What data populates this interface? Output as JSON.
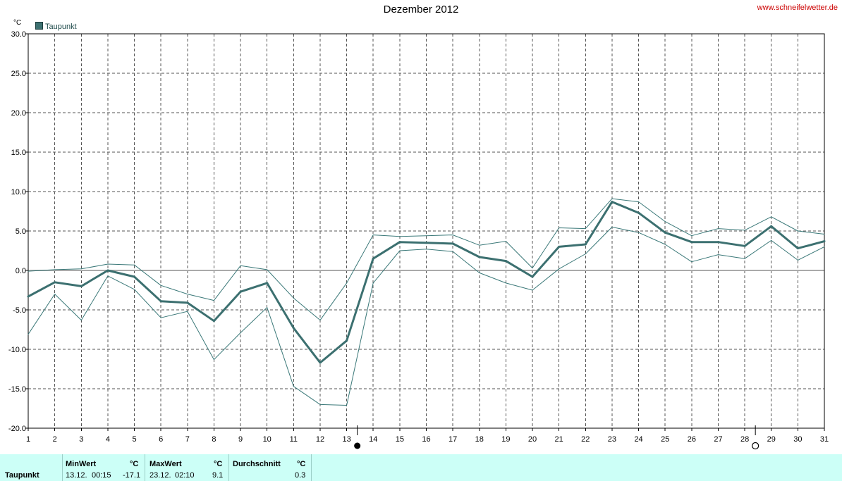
{
  "title": "Dezember 2012",
  "site": "www.schneifelwetter.de",
  "unit": "°C",
  "legend": {
    "label": "Taupunkt"
  },
  "colors": {
    "main": "#3c7070",
    "band": "#3a7878",
    "grid": "#555555",
    "zero": "#aaaaaa",
    "stats_bg": "#ccfff7"
  },
  "moon": {
    "new_moon_label_pos": "13-14",
    "full_moon_label_pos": "28-29"
  },
  "chart_data": {
    "type": "line",
    "title": "Dezember 2012",
    "ylabel": "°C",
    "ylim": [
      -20,
      30
    ],
    "yticks": [
      "30.0",
      "25.0",
      "20.0",
      "15.0",
      "10.0",
      "5.0",
      "0.0",
      "-5.0",
      "-10.0",
      "-15.0",
      "-20.0"
    ],
    "x": [
      1,
      2,
      3,
      4,
      5,
      6,
      7,
      8,
      9,
      10,
      11,
      12,
      13,
      14,
      15,
      16,
      17,
      18,
      19,
      20,
      21,
      22,
      23,
      24,
      25,
      26,
      27,
      28,
      29,
      30,
      31
    ],
    "series": [
      {
        "name": "Taupunkt",
        "values": [
          -3.3,
          -1.5,
          -2.0,
          0.0,
          -0.8,
          -3.9,
          -4.1,
          -6.4,
          -2.7,
          -1.6,
          -7.3,
          -11.7,
          -8.9,
          1.5,
          3.6,
          3.5,
          3.4,
          1.7,
          1.2,
          -0.8,
          3.0,
          3.3,
          8.7,
          7.3,
          4.8,
          3.6,
          3.6,
          3.1,
          5.6,
          2.8,
          3.7
        ]
      },
      {
        "values": [
          -0.1,
          0.1,
          0.2,
          0.8,
          0.7,
          -1.9,
          -3.0,
          -3.8,
          0.6,
          0.1,
          -3.5,
          -6.3,
          -1.6,
          4.5,
          4.3,
          4.4,
          4.5,
          3.2,
          3.7,
          0.3,
          5.4,
          5.3,
          9.1,
          8.7,
          6.2,
          4.4,
          5.3,
          5.1,
          6.8,
          5.0,
          4.6
        ]
      },
      {
        "values": [
          -8.1,
          -3.0,
          -6.3,
          -0.7,
          -2.4,
          -6.0,
          -5.2,
          -11.3,
          -7.9,
          -4.7,
          -14.7,
          -17.0,
          -17.1,
          -1.6,
          2.5,
          2.7,
          2.4,
          -0.3,
          -1.6,
          -2.5,
          0.2,
          2.1,
          5.5,
          4.8,
          3.3,
          1.1,
          2.0,
          1.5,
          3.8,
          1.3,
          3.0
        ]
      }
    ]
  },
  "stats": {
    "row_label": "Taupunkt",
    "min": {
      "header": "MinWert",
      "unit": "°C",
      "date": "13.12.",
      "time": "00:15",
      "value": "-17.1"
    },
    "max": {
      "header": "MaxWert",
      "unit": "°C",
      "date": "23.12.",
      "time": "02:10",
      "value": "9.1"
    },
    "avg": {
      "header": "Durchschnitt",
      "unit": "°C",
      "value": "0.3"
    }
  }
}
